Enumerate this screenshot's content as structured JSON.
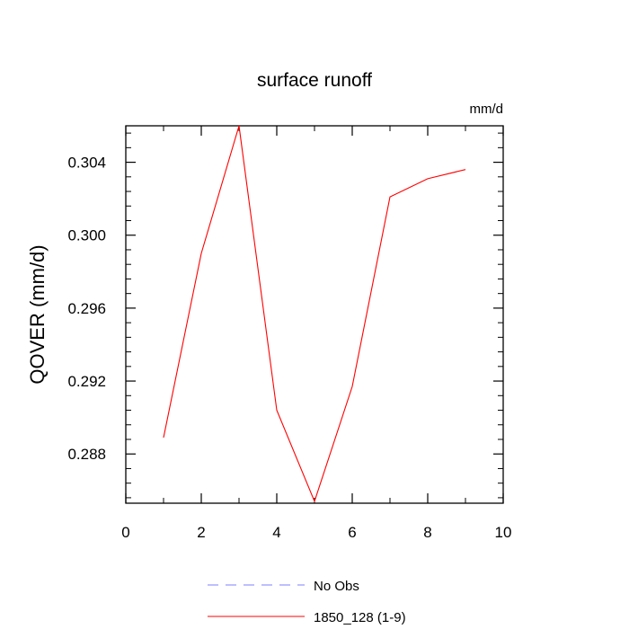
{
  "chart_data": {
    "type": "line",
    "title": "surface runoff",
    "units_label": "mm/d",
    "ylabel": "QOVER  (mm/d)",
    "xlabel": "",
    "xlim": [
      0,
      10
    ],
    "ylim": [
      0.2853,
      0.306
    ],
    "xticks": [
      0,
      2,
      4,
      6,
      8,
      10
    ],
    "xtick_labels": [
      "0",
      "2",
      "4",
      "6",
      "8",
      "10"
    ],
    "yticks": [
      0.288,
      0.292,
      0.296,
      0.3,
      0.304
    ],
    "ytick_labels": [
      "0.288",
      "0.292",
      "0.296",
      "0.300",
      "0.304"
    ],
    "grid": false,
    "legend_position": "bottom",
    "legend": [
      {
        "label": "No Obs",
        "color": "#7f7fff",
        "style": "dashed"
      },
      {
        "label": "1850_128 (1-9)",
        "color": "#ff0000",
        "style": "solid"
      }
    ],
    "series": [
      {
        "name": "1850_128 (1-9)",
        "color": "#ff0000",
        "x": [
          1,
          2,
          3,
          4,
          5,
          6,
          7,
          8,
          9
        ],
        "y": [
          0.2889,
          0.299,
          0.306,
          0.2904,
          0.2854,
          0.2917,
          0.3021,
          0.3031,
          0.3036
        ]
      }
    ]
  }
}
